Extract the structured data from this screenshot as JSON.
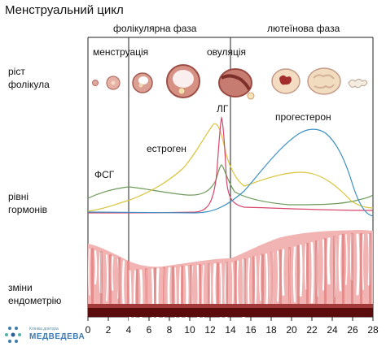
{
  "title": "Менструальний цикл",
  "phases": {
    "follicular": "фолікулярна фаза",
    "luteal": "лютеїнова фаза"
  },
  "stage_labels": {
    "menstruation": "менструація",
    "ovulation": "овуляція"
  },
  "row_labels": {
    "follicle_growth": [
      "ріст",
      "фолікула"
    ],
    "hormone_levels": [
      "рівні",
      "гормонів"
    ],
    "endometrium": [
      "зміни",
      "ендометрію"
    ]
  },
  "hormones": {
    "fsh": {
      "label": "ФСГ",
      "color": "#6e9a5a"
    },
    "lh": {
      "label": "ЛГ",
      "color": "#d7466b"
    },
    "estrogen": {
      "label": "естроген",
      "color": "#d8c43c"
    },
    "progesterone": {
      "label": "прогестерон",
      "color": "#3c8fc2"
    }
  },
  "x_axis": {
    "ticks": [
      "0",
      "2",
      "4",
      "6",
      "8",
      "10",
      "12",
      "14",
      "16",
      "18",
      "20",
      "22",
      "24",
      "26",
      "28"
    ]
  },
  "logo": {
    "line1": "Клініка доктора",
    "line2": "МЕДВЕДЕВА"
  },
  "colors": {
    "endometrium_light": "#f2b3b3",
    "endometrium_dark": "#d86a6a",
    "endometrium_base": "#5a0c0c",
    "follicle": "#c97a6e"
  }
}
